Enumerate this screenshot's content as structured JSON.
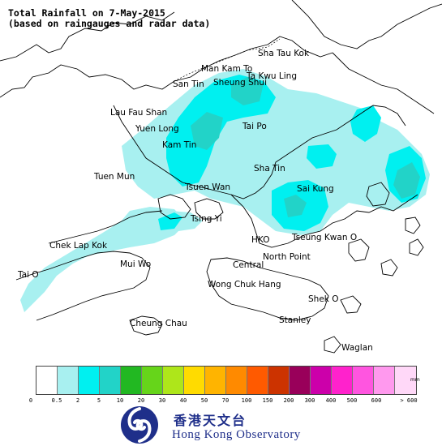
{
  "title": {
    "line1": "Total Rainfall on 7-May-2015",
    "line2": "(based on raingauges and radar data)"
  },
  "places": [
    {
      "id": "sha-tau-kok",
      "label": "Sha Tau Kok"
    },
    {
      "id": "man-kam-to",
      "label": "Man Kam To"
    },
    {
      "id": "ta-kwu-ling",
      "label": "Ta Kwu Ling"
    },
    {
      "id": "san-tin",
      "label": "San Tin"
    },
    {
      "id": "sheung-shui",
      "label": "Sheung Shui"
    },
    {
      "id": "lau-fau-shan",
      "label": "Lau Fau Shan"
    },
    {
      "id": "yuen-long",
      "label": "Yuen Long"
    },
    {
      "id": "tai-po",
      "label": "Tai Po"
    },
    {
      "id": "kam-tin",
      "label": "Kam Tin"
    },
    {
      "id": "sha-tin",
      "label": "Sha Tin"
    },
    {
      "id": "tuen-mun",
      "label": "Tuen Mun"
    },
    {
      "id": "tsuen-wan",
      "label": "Tsuen Wan"
    },
    {
      "id": "sai-kung",
      "label": "Sai Kung"
    },
    {
      "id": "tsing-yi",
      "label": "Tsing Yi"
    },
    {
      "id": "chek-lap-kok",
      "label": "Chek Lap Kok"
    },
    {
      "id": "hko",
      "label": "HKO"
    },
    {
      "id": "tseung-kwan-o",
      "label": "Tseung Kwan O"
    },
    {
      "id": "mui-wo",
      "label": "Mui Wo"
    },
    {
      "id": "central",
      "label": "Central"
    },
    {
      "id": "north-point",
      "label": "North Point"
    },
    {
      "id": "tai-o",
      "label": "Tai O"
    },
    {
      "id": "wong-chuk-hang",
      "label": "Wong Chuk Hang"
    },
    {
      "id": "shek-o",
      "label": "Shek O"
    },
    {
      "id": "cheung-chau",
      "label": "Cheung Chau"
    },
    {
      "id": "stanley",
      "label": "Stanley"
    },
    {
      "id": "waglan",
      "label": "Waglan"
    }
  ],
  "legend": {
    "unit": "mm",
    "colors": [
      "#ffffff",
      "#a8f0f0",
      "#00f0f0",
      "#22d3c8",
      "#22b822",
      "#66d51a",
      "#aee61a",
      "#ffdb00",
      "#ffb400",
      "#ff8a00",
      "#ff5a00",
      "#cc3300",
      "#99005a",
      "#cc00aa",
      "#ff22cc",
      "#ff55e0",
      "#ff99ee",
      "#ffd8f8"
    ],
    "ticks": [
      "0",
      "0.5",
      "2",
      "5",
      "10",
      "20",
      "30",
      "40",
      "50",
      "70",
      "100",
      "150",
      "200",
      "300",
      "400",
      "500",
      "600",
      "> 600"
    ]
  },
  "logo": {
    "chinese": "香港天文台",
    "english": "Hong Kong Observatory",
    "colors": {
      "brand": "#1f2f8a"
    }
  },
  "map_colors": {
    "light_cyan": "#a8f0f0",
    "cyan": "#00f0f0",
    "teal": "#22d3c8",
    "coast": "#000000"
  }
}
